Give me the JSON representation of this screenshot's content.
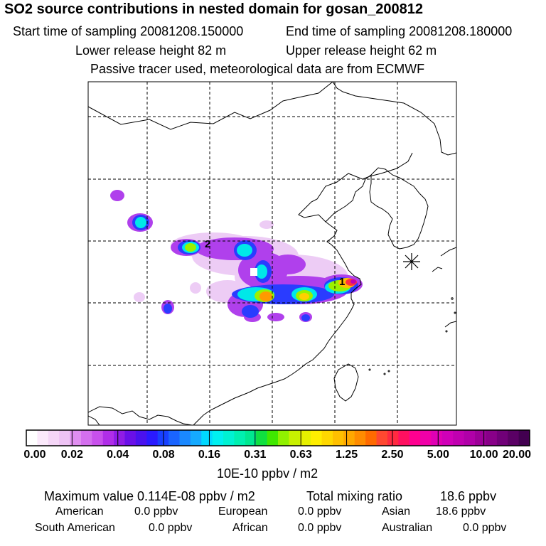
{
  "header": {
    "title": "SO2 source contributions in nested domain for gosan_200812",
    "start_label": "Start time of sampling 20081208.150000",
    "end_label": "End time of sampling 20081208.180000",
    "lower_label": "Lower release height   82 m",
    "upper_label": "Upper release height   62 m",
    "note": "Passive tracer used, meteorological data are from ECMWF"
  },
  "map": {
    "markers": [
      {
        "label": "1"
      },
      {
        "label": "2"
      }
    ]
  },
  "colorbar": {
    "ticks": [
      "0.00",
      "0.02",
      "0.04",
      "0.08",
      "0.16",
      "0.31",
      "0.63",
      "1.25",
      "2.50",
      "5.00",
      "10.00",
      "20.00"
    ],
    "unit": "10E-10 ppbv / m2",
    "colors": [
      "#ffffff",
      "#fbe9fb",
      "#f5d6f7",
      "#eec3f4",
      "#e08ef0",
      "#d46fee",
      "#c850ec",
      "#b02ee8",
      "#8f1ce6",
      "#6a10e8",
      "#4a12ee",
      "#2a1aff",
      "#1840ff",
      "#1a64ff",
      "#1a88ff",
      "#15aaff",
      "#00d8ff",
      "#00f0f0",
      "#00f2d2",
      "#00f0b0",
      "#00e890",
      "#10e040",
      "#40e800",
      "#90f000",
      "#c8f000",
      "#e6f000",
      "#ffee00",
      "#ffd800",
      "#ffc000",
      "#ffa800",
      "#ff8c00",
      "#ff6a00",
      "#ff4830",
      "#ff2a40",
      "#ff1060",
      "#ff0090",
      "#f000a8",
      "#e000b4",
      "#d000b8",
      "#c000b0",
      "#b000a8",
      "#9c0098",
      "#880088",
      "#700078",
      "#5a0064",
      "#420050"
    ]
  },
  "stats": {
    "max_label": "Maximum value  0.114E-08 ppbv / m2",
    "total_label": "Total mixing ratio",
    "total_value": "18.6 ppbv",
    "regions": [
      {
        "name": "American",
        "value": "0.0 ppbv"
      },
      {
        "name": "European",
        "value": "0.0 ppbv"
      },
      {
        "name": "Asian",
        "value": "18.6 ppbv"
      },
      {
        "name": "South American",
        "value": "0.0 ppbv"
      },
      {
        "name": "African",
        "value": "0.0 ppbv"
      },
      {
        "name": "Australian",
        "value": "0.0 ppbv"
      }
    ]
  }
}
